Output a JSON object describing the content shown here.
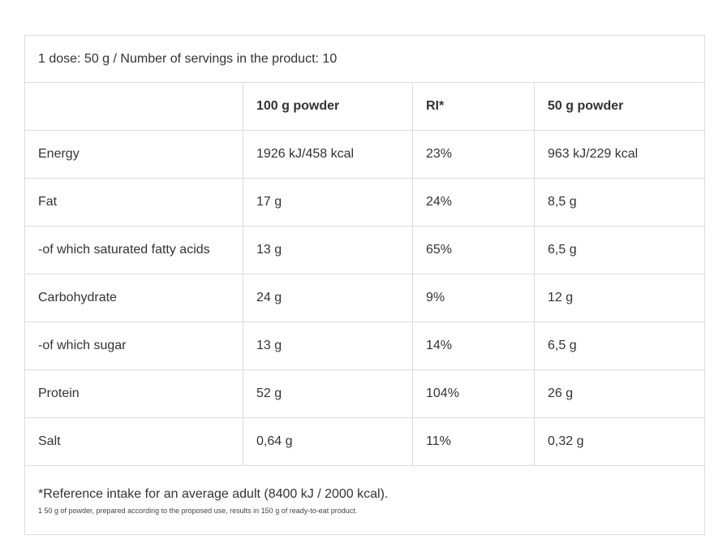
{
  "caption": "1 dose: 50 g  / Number of servings in the product: 10",
  "headers": [
    "",
    "100 g powder",
    "RI*",
    "50  g powder"
  ],
  "rows": [
    [
      "Energy",
      "1926 kJ/458 kcal",
      "23%",
      "963 kJ/229 kcal"
    ],
    [
      "Fat",
      "17 g",
      "24%",
      "8,5 g"
    ],
    [
      "-of which saturated fatty acids",
      "13 g",
      "65%",
      "6,5 g"
    ],
    [
      "Carbohydrate",
      "24 g",
      "9%",
      "12 g"
    ],
    [
      "-of which sugar",
      "13 g",
      "14%",
      "6,5 g"
    ],
    [
      "Protein",
      "52 g",
      "104%",
      "26 g"
    ],
    [
      "Salt",
      "0,64 g",
      "11%",
      "0,32 g"
    ]
  ],
  "footnote_main": "*Reference intake for an average adult (8400 kJ / 2000 kcal).",
  "footnote_small": "1 50 g of powder, prepared according to the proposed use, results in 150 g of ready-to-eat product."
}
